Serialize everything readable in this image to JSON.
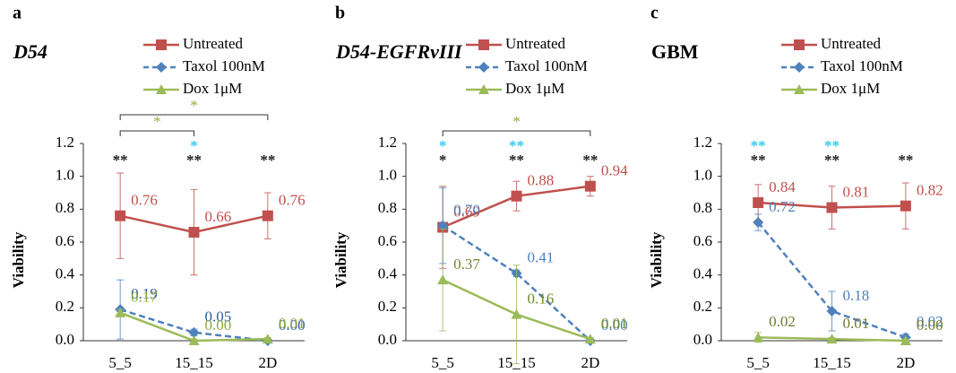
{
  "chart_data": [
    {
      "type": "line",
      "panel_label": "a",
      "title": "D54",
      "italic": true,
      "y_label": "Viability",
      "categories": [
        "5_5",
        "15_15",
        "2D"
      ],
      "ylim": [
        0,
        1.2
      ],
      "yticks": [
        {
          "value": 0,
          "label": "0.0"
        },
        0.2,
        0.4,
        0.6,
        0.8,
        {
          "value": 1,
          "label": "1.0"
        },
        1.2
      ],
      "series": [
        {
          "name": "Untreated",
          "color": "#c0504d",
          "label_color": "#c0504d",
          "marker": "square",
          "dashed": false,
          "values": [
            0.76,
            0.66,
            0.76
          ],
          "value_labels": [
            "0.76",
            "0.66",
            "0.76"
          ],
          "errors": [
            0.26,
            0.26,
            0.14
          ]
        },
        {
          "name": "Taxol 100nM",
          "color": "#4f81bd",
          "label_color": "#2e5d9a",
          "marker": "diamond",
          "dashed": true,
          "values": [
            0.19,
            0.05,
            0
          ],
          "value_labels": [
            "0.19",
            "0.05",
            "0.00"
          ],
          "errors": [
            0.18,
            0.02,
            0.01
          ]
        },
        {
          "name": "Dox 1μM",
          "color": "#9bbb59",
          "label_color": "#8aa83a",
          "marker": "triangle",
          "dashed": false,
          "values": [
            0.17,
            0,
            0.01
          ],
          "value_labels": [
            "0.17",
            "0.00",
            "0.01"
          ],
          "errors": [
            0.02,
            0.01,
            0.01
          ]
        }
      ],
      "significance": [
        [
          {
            "text": "**",
            "color": "#222222"
          }
        ],
        [
          {
            "text": "*",
            "color": "#33ccee"
          },
          {
            "text": "**",
            "color": "#222222"
          }
        ],
        [
          {
            "text": "**",
            "color": "#222222"
          }
        ]
      ],
      "brackets": [
        {
          "from": 0,
          "to": 2,
          "text": "*",
          "color": "#9aab3c"
        },
        {
          "from": 0,
          "to": 1,
          "text": "*",
          "color": "#9aab3c"
        }
      ]
    },
    {
      "type": "line",
      "panel_label": "b",
      "title": "D54-EGFRvIII",
      "italic": true,
      "y_label": "Viability",
      "categories": [
        "5_5",
        "15_15",
        "2D"
      ],
      "ylim": [
        0,
        1.2
      ],
      "yticks": [
        {
          "value": 0,
          "label": "0.0"
        },
        0.2,
        0.4,
        0.6,
        0.8,
        {
          "value": 1,
          "label": "1.0"
        },
        1.2
      ],
      "series": [
        {
          "name": "Untreated",
          "color": "#c0504d",
          "label_color": "#c0504d",
          "marker": "square",
          "dashed": false,
          "values": [
            0.69,
            0.88,
            0.94
          ],
          "value_labels": [
            "0.69",
            "0.88",
            "0.94"
          ],
          "errors": [
            0.25,
            0.09,
            0.06
          ]
        },
        {
          "name": "Taxol 100nM",
          "color": "#4f81bd",
          "label_color": "#4f81bd",
          "marker": "diamond",
          "dashed": true,
          "values": [
            0.7,
            0.41,
            0
          ],
          "value_labels": [
            "0.70",
            "0.41",
            "0.00"
          ],
          "errors": [
            0.23,
            0.02,
            0.01
          ]
        },
        {
          "name": "Dox 1μM",
          "color": "#9bbb59",
          "label_color": "#6f8a2e",
          "marker": "triangle",
          "dashed": false,
          "values": [
            0.37,
            0.16,
            0.01
          ],
          "value_labels": [
            "0.37",
            "0.16",
            "0.01"
          ],
          "errors": [
            0.31,
            0.3,
            0.01
          ]
        }
      ],
      "significance": [
        [
          {
            "text": "*",
            "color": "#33ccee"
          },
          {
            "text": "*",
            "color": "#222222"
          }
        ],
        [
          {
            "text": "**",
            "color": "#33ccee"
          },
          {
            "text": "**",
            "color": "#222222"
          }
        ],
        [
          {
            "text": "**",
            "color": "#222222"
          }
        ]
      ],
      "brackets": [
        {
          "from": 0,
          "to": 2,
          "text": "*",
          "color": "#9aab3c"
        }
      ]
    },
    {
      "type": "line",
      "panel_label": "c",
      "title": "GBM",
      "italic": false,
      "y_label": "Viability",
      "categories": [
        "5_5",
        "15_15",
        "2D"
      ],
      "ylim": [
        0,
        1.2
      ],
      "yticks": [
        {
          "value": 0,
          "label": "0.0"
        },
        0.2,
        0.4,
        0.6,
        0.8,
        {
          "value": 1,
          "label": "1.0"
        },
        1.2
      ],
      "series": [
        {
          "name": "Untreated",
          "color": "#c0504d",
          "label_color": "#c0504d",
          "marker": "square",
          "dashed": false,
          "values": [
            0.84,
            0.81,
            0.82
          ],
          "value_labels": [
            "0.84",
            "0.81",
            "0.82"
          ],
          "errors": [
            0.11,
            0.13,
            0.14
          ]
        },
        {
          "name": "Taxol 100nM",
          "color": "#4f81bd",
          "label_color": "#4f81bd",
          "marker": "diamond",
          "dashed": true,
          "values": [
            0.72,
            0.18,
            0.02
          ],
          "value_labels": [
            "0.72",
            "0.18",
            "0.02"
          ],
          "errors": [
            0.05,
            0.12,
            0.02
          ]
        },
        {
          "name": "Dox 1μM",
          "color": "#9bbb59",
          "label_color": "#6f7a2e",
          "marker": "triangle",
          "dashed": false,
          "values": [
            0.02,
            0.01,
            0
          ],
          "value_labels": [
            "0.02",
            "0.01",
            "0.00"
          ],
          "errors": [
            0.03,
            0.01,
            0.01
          ]
        }
      ],
      "significance": [
        [
          {
            "text": "**",
            "color": "#33ccee"
          },
          {
            "text": "**",
            "color": "#222222"
          }
        ],
        [
          {
            "text": "**",
            "color": "#33ccee"
          },
          {
            "text": "**",
            "color": "#222222"
          }
        ],
        [
          {
            "text": "**",
            "color": "#222222"
          }
        ]
      ],
      "brackets": []
    }
  ]
}
